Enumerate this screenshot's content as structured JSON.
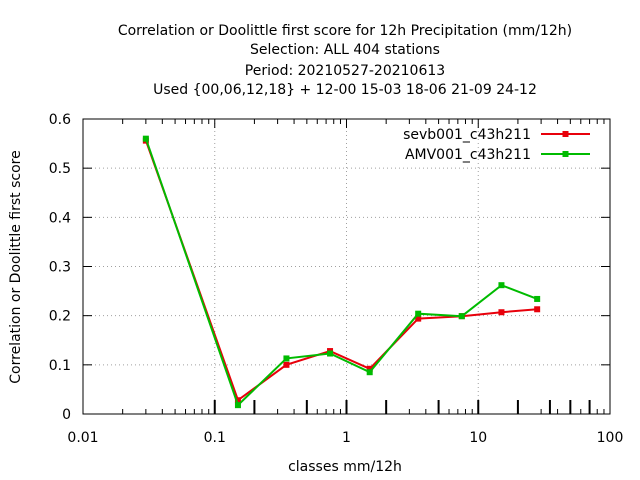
{
  "chart_data": {
    "type": "line",
    "title_lines": [
      "Correlation or Doolittle first score  for 12h Precipitation (mm/12h)",
      "Selection: ALL    404 stations",
      "Period: 20210527-20210613",
      "Used {00,06,12,18} + 12-00 15-03 18-06 21-09 24-12"
    ],
    "xlabel": "classes mm/12h",
    "ylabel": "Correlation or Doolittle first score",
    "x_scale": "log",
    "xlim": [
      0.01,
      100
    ],
    "ylim": [
      0,
      0.6
    ],
    "x_ticks": [
      "0.01",
      "0.1",
      "1",
      "10",
      "100"
    ],
    "y_ticks": [
      "0",
      "0.1",
      "0.2",
      "0.3",
      "0.4",
      "0.5",
      "0.6"
    ],
    "grid": true,
    "legend_position": "top-right",
    "class_markers": [
      0.1,
      0.2,
      0.5,
      1,
      2,
      5,
      10,
      20,
      35,
      50,
      70
    ],
    "series": [
      {
        "name": "sevb001_c43h211",
        "color": "#e8000b",
        "x": [
          0.03,
          0.15,
          0.35,
          0.75,
          1.5,
          3.5,
          7.5,
          15,
          28
        ],
        "y": [
          0.556,
          0.028,
          0.1,
          0.128,
          0.092,
          0.194,
          0.199,
          0.207,
          0.213
        ]
      },
      {
        "name": "AMV001_c43h211",
        "color": "#00bb00",
        "x": [
          0.03,
          0.15,
          0.35,
          0.75,
          1.5,
          3.5,
          7.5,
          15,
          28
        ],
        "y": [
          0.56,
          0.018,
          0.113,
          0.123,
          0.085,
          0.204,
          0.199,
          0.262,
          0.234
        ]
      }
    ]
  }
}
